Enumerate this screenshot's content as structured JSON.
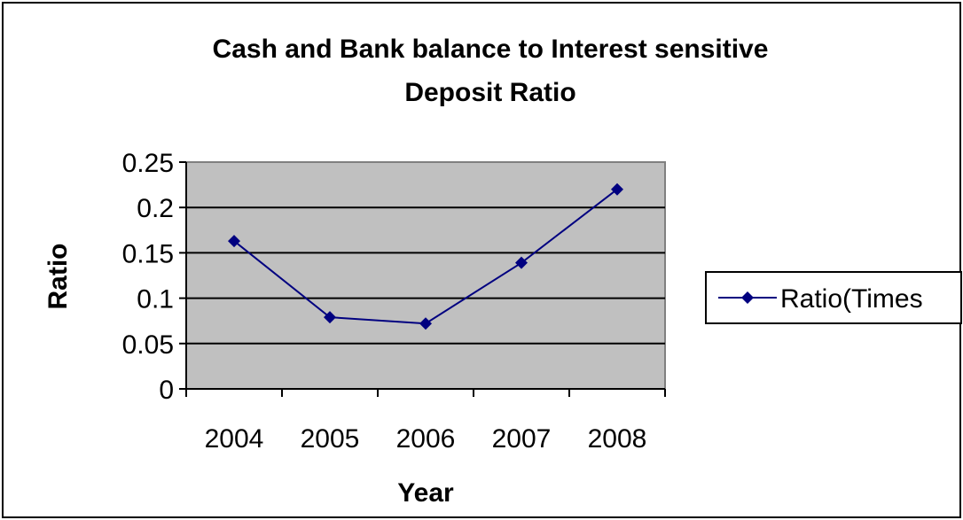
{
  "chart_data": {
    "type": "line",
    "title": [
      "Cash and Bank balance to Interest sensitive",
      "Deposit Ratio"
    ],
    "xlabel": "Year",
    "ylabel": "Ratio",
    "categories": [
      "2004",
      "2005",
      "2006",
      "2007",
      "2008"
    ],
    "series": [
      {
        "name": "Ratio(Times",
        "values": [
          0.163,
          0.079,
          0.072,
          0.139,
          0.22
        ]
      }
    ],
    "ylim": [
      0,
      0.25
    ],
    "yticks": [
      "0",
      "0.05",
      "0.1",
      "0.15",
      "0.2",
      "0.25"
    ],
    "grid": true,
    "legend_position": "right",
    "colors": {
      "series": "#000080",
      "plot_background": "#C0C0C0",
      "gridline": "#000000",
      "border": "#000000"
    }
  }
}
